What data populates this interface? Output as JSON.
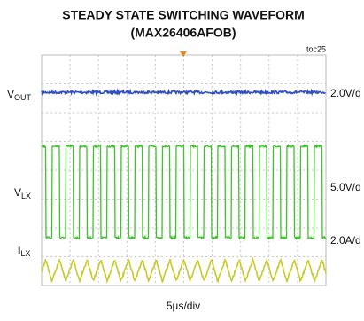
{
  "header": {
    "title": "STEADY STATE SWITCHING WAVEFORM",
    "subtitle": "(MAX26406AFOB)",
    "tag": "toc25"
  },
  "channels": [
    {
      "label": "V",
      "label_sub": "OUT",
      "scale": "2.0V/d"
    },
    {
      "label": "V",
      "label_sub": "LX",
      "scale": "5.0V/d"
    },
    {
      "label": "I",
      "label_sub": "LX",
      "scale": "2.0A/d"
    }
  ],
  "timebase": "5µs/div"
}
